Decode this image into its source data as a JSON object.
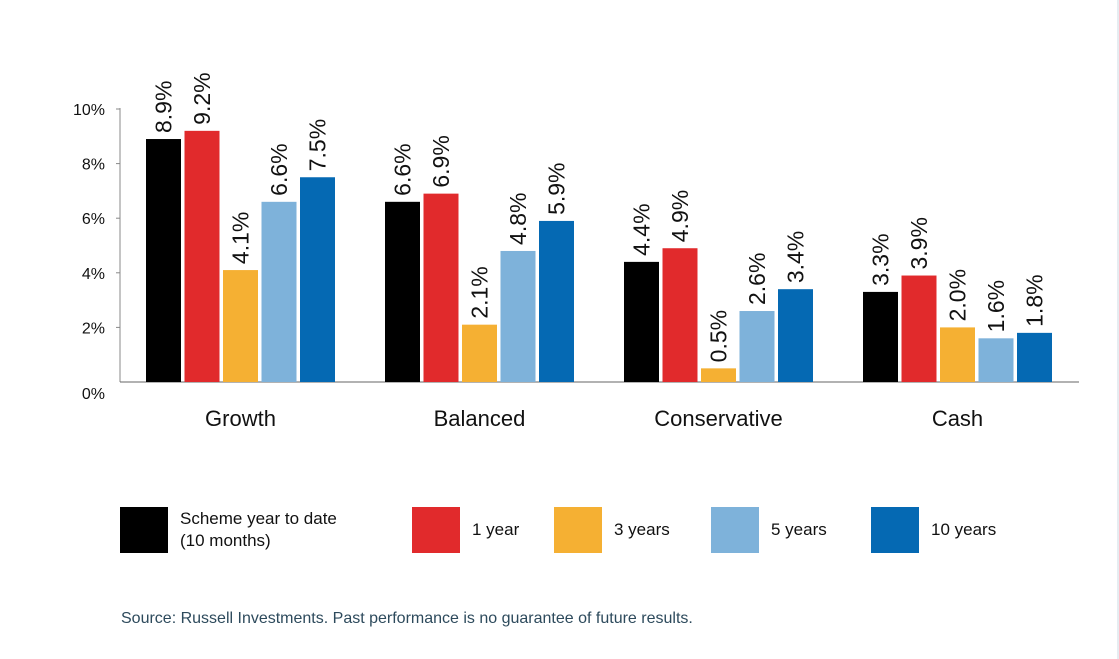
{
  "chart_data": {
    "type": "bar",
    "title": "",
    "xlabel": "",
    "ylabel": "",
    "ylim": [
      0,
      10
    ],
    "yticks": [
      "0%",
      "2%",
      "4%",
      "6%",
      "8%",
      "10%"
    ],
    "ytick_values": [
      0,
      2,
      4,
      6,
      8,
      10
    ],
    "grid": false,
    "legend_position": "bottom",
    "categories": [
      "Growth",
      "Balanced",
      "Conservative",
      "Cash"
    ],
    "series": [
      {
        "name": "Scheme year to date\n(10 months)",
        "color": "#000000",
        "values": [
          8.9,
          6.6,
          4.4,
          3.3
        ],
        "labels": [
          "8.9%",
          "6.6%",
          "4.4%",
          "3.3%"
        ]
      },
      {
        "name": "1 year",
        "color": "#e12a2c",
        "values": [
          9.2,
          6.9,
          4.9,
          3.9
        ],
        "labels": [
          "9.2%",
          "6.9%",
          "4.9%",
          "3.9%"
        ]
      },
      {
        "name": "3 years",
        "color": "#f5b033",
        "values": [
          4.1,
          2.1,
          0.5,
          2.0
        ],
        "labels": [
          "4.1%",
          "2.1%",
          "0.5%",
          "2.0%"
        ]
      },
      {
        "name": "5 years",
        "color": "#7eb2da",
        "values": [
          6.6,
          4.8,
          2.6,
          1.6
        ],
        "labels": [
          "6.6%",
          "4.8%",
          "2.6%",
          "1.6%"
        ]
      },
      {
        "name": "10 years",
        "color": "#0569b3",
        "values": [
          7.5,
          5.9,
          3.4,
          1.8
        ],
        "labels": [
          "7.5%",
          "5.9%",
          "3.4%",
          "1.8%"
        ]
      }
    ]
  },
  "source_note": "Source: Russell Investments. Past performance is no guarantee of future results."
}
